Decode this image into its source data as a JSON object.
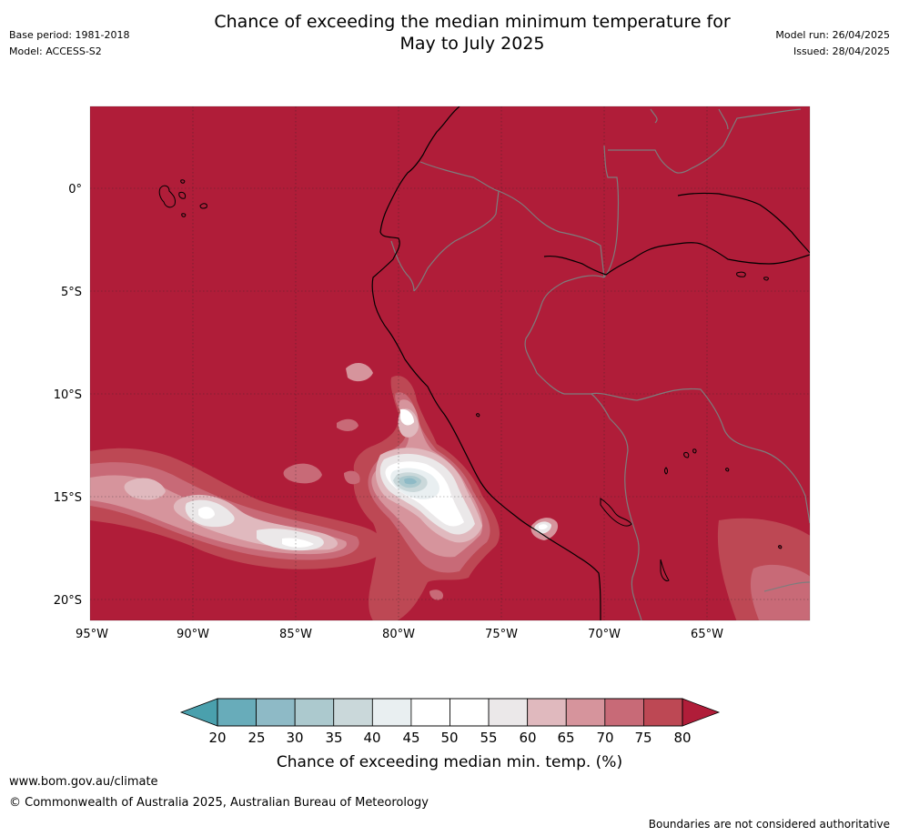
{
  "header": {
    "title_line1": "Chance of exceeding the median minimum temperature for",
    "title_line2": "May to July 2025",
    "base_period": "Base period: 1981-2018",
    "model": "Model: ACCESS-S2",
    "model_run": "Model run: 26/04/2025",
    "issued": "Issued: 28/04/2025"
  },
  "map": {
    "lat_labels": [
      "0°",
      "5°S",
      "10°S",
      "15°S",
      "20°S"
    ],
    "lon_labels": [
      "95°W",
      "90°W",
      "85°W",
      "80°W",
      "75°W",
      "70°W",
      "65°W"
    ],
    "background_color": "#b01d39"
  },
  "legend": {
    "tick_labels": [
      "20",
      "25",
      "30",
      "35",
      "40",
      "45",
      "50",
      "55",
      "60",
      "65",
      "70",
      "75",
      "80"
    ],
    "label": "Chance of exceeding median min. temp. (%)",
    "low_extend_color": "#4aa0ad",
    "high_extend_color": "#b01d39",
    "colors": [
      "#68acba",
      "#8ebac6",
      "#acc9ce",
      "#cad8da",
      "#e9eff1",
      "#ffffff",
      "#ffffff",
      "#ebe8e9",
      "#e0b9be",
      "#d6949c",
      "#c86a77",
      "#bd4854"
    ]
  },
  "footer": {
    "url": "www.bom.gov.au/climate",
    "copyright": "© Commonwealth of Australia 2025, Australian Bureau of Meteorology",
    "note": "Boundaries are not considered authoritative"
  }
}
